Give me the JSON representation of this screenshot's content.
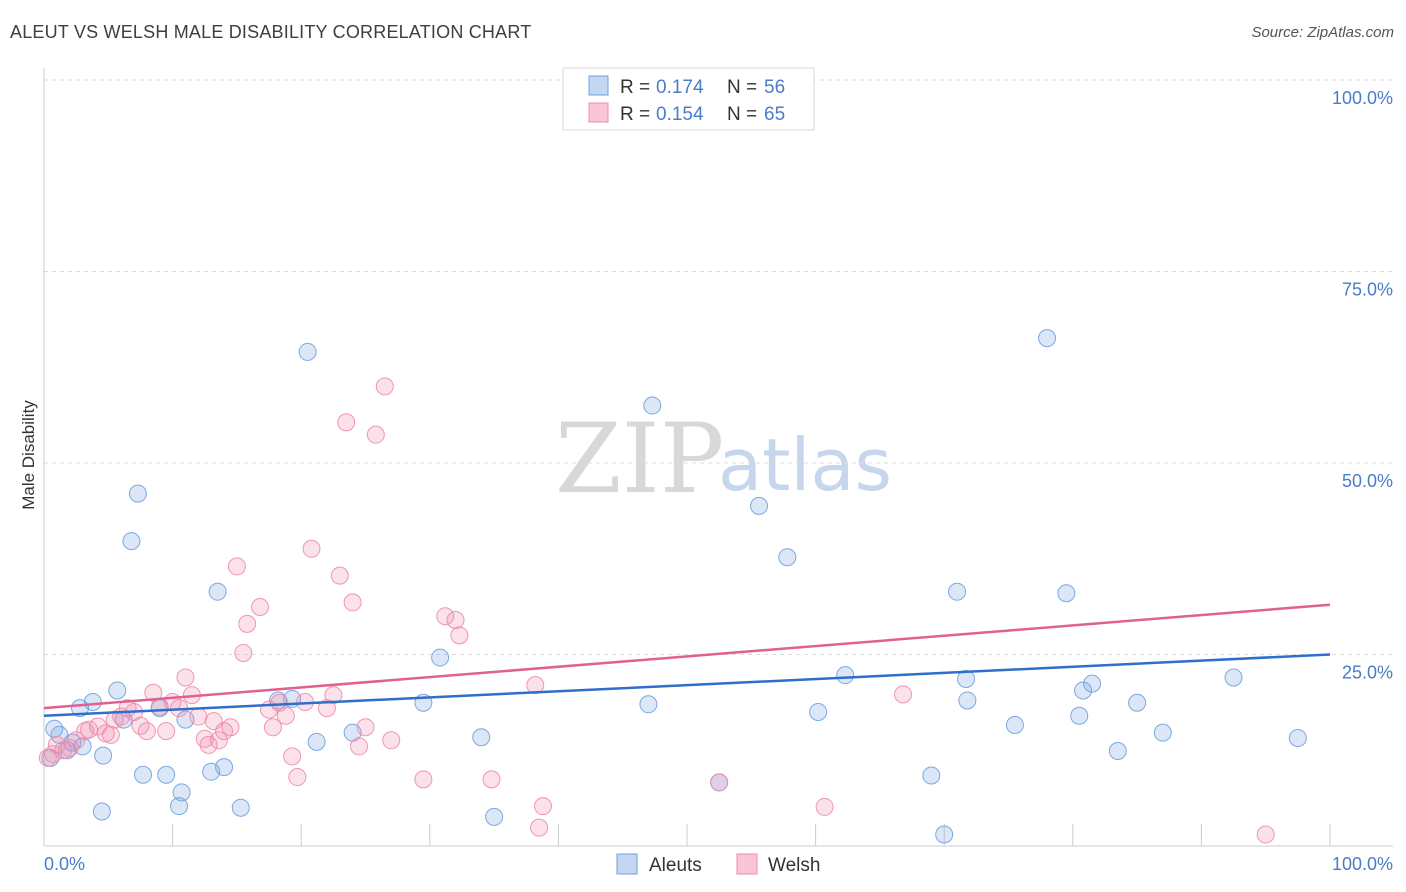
{
  "title": "ALEUT VS WELSH MALE DISABILITY CORRELATION CHART",
  "source": "Source: ZipAtlas.com",
  "watermark": {
    "zip": "ZIP",
    "atlas": "atlas"
  },
  "chart_data": {
    "type": "scatter",
    "title": "ALEUT VS WELSH MALE DISABILITY CORRELATION CHART",
    "ylabel": "Male Disability",
    "xlabel": "",
    "xlim": [
      0,
      100
    ],
    "ylim": [
      0,
      100
    ],
    "x_tick_labels": {
      "left": "0.0%",
      "right": "100.0%"
    },
    "y_ticks": [
      {
        "value": 100,
        "label": "100.0%"
      },
      {
        "value": 75,
        "label": "75.0%"
      },
      {
        "value": 50,
        "label": "50.0%"
      },
      {
        "value": 25,
        "label": "25.0%"
      }
    ],
    "grid": true,
    "legend_position": "top-center",
    "series": [
      {
        "name": "Aleuts",
        "color": "#6fa0e0",
        "line_color": "#2f6fcc",
        "r_label": "R =",
        "r_value": "0.174",
        "n_label": "N =",
        "n_value": "56",
        "trend": {
          "x": [
            0,
            100
          ],
          "y": [
            17.0,
            25.0
          ]
        },
        "points": [
          [
            0.5,
            11.5
          ],
          [
            0.8,
            15.3
          ],
          [
            1.2,
            14.5
          ],
          [
            1.8,
            12.5
          ],
          [
            2.2,
            13.5
          ],
          [
            3.0,
            13.0
          ],
          [
            2.8,
            18.0
          ],
          [
            3.8,
            18.8
          ],
          [
            4.6,
            11.8
          ],
          [
            4.5,
            4.5
          ],
          [
            5.7,
            20.3
          ],
          [
            6.2,
            16.5
          ],
          [
            6.8,
            39.8
          ],
          [
            7.3,
            46.0
          ],
          [
            7.7,
            9.3
          ],
          [
            9.0,
            18.0
          ],
          [
            9.5,
            9.3
          ],
          [
            10.5,
            5.2
          ],
          [
            10.7,
            7.0
          ],
          [
            11.0,
            16.5
          ],
          [
            13.0,
            9.7
          ],
          [
            13.5,
            33.2
          ],
          [
            14.0,
            10.3
          ],
          [
            15.3,
            5.0
          ],
          [
            18.2,
            19.0
          ],
          [
            19.3,
            19.2
          ],
          [
            20.5,
            64.5
          ],
          [
            21.2,
            13.6
          ],
          [
            24.0,
            14.8
          ],
          [
            29.5,
            18.7
          ],
          [
            30.8,
            24.6
          ],
          [
            34.0,
            14.2
          ],
          [
            35.0,
            3.8
          ],
          [
            47.0,
            18.5
          ],
          [
            47.3,
            57.5
          ],
          [
            52.5,
            8.3
          ],
          [
            55.6,
            44.4
          ],
          [
            57.8,
            37.7
          ],
          [
            60.2,
            17.5
          ],
          [
            62.3,
            22.3
          ],
          [
            69.0,
            9.2
          ],
          [
            70.0,
            1.5
          ],
          [
            71.0,
            33.2
          ],
          [
            71.7,
            21.8
          ],
          [
            71.8,
            19.0
          ],
          [
            75.5,
            15.8
          ],
          [
            78.0,
            66.3
          ],
          [
            79.5,
            33.0
          ],
          [
            80.5,
            17.0
          ],
          [
            80.8,
            20.3
          ],
          [
            81.5,
            21.2
          ],
          [
            83.5,
            12.4
          ],
          [
            85.0,
            18.7
          ],
          [
            87.0,
            14.8
          ],
          [
            92.5,
            22.0
          ],
          [
            97.5,
            14.1
          ]
        ]
      },
      {
        "name": "Welsh",
        "color": "#f08bab",
        "line_color": "#e06090",
        "r_label": "R =",
        "r_value": "0.154",
        "n_label": "N =",
        "n_value": "65",
        "trend": {
          "x": [
            0,
            100
          ],
          "y": [
            18.0,
            31.5
          ]
        },
        "points": [
          [
            0.3,
            11.5
          ],
          [
            0.7,
            12.0
          ],
          [
            1.0,
            13.2
          ],
          [
            1.5,
            12.5
          ],
          [
            2.0,
            12.8
          ],
          [
            2.5,
            13.8
          ],
          [
            3.2,
            15.0
          ],
          [
            3.5,
            15.2
          ],
          [
            4.2,
            15.6
          ],
          [
            4.8,
            14.7
          ],
          [
            5.2,
            14.5
          ],
          [
            5.5,
            16.5
          ],
          [
            6.0,
            16.9
          ],
          [
            6.5,
            18.0
          ],
          [
            7.0,
            17.5
          ],
          [
            7.5,
            15.7
          ],
          [
            8.0,
            15.0
          ],
          [
            8.5,
            20.0
          ],
          [
            9.0,
            18.2
          ],
          [
            9.5,
            15.0
          ],
          [
            10.0,
            18.8
          ],
          [
            10.5,
            18.0
          ],
          [
            11.0,
            22.0
          ],
          [
            11.5,
            19.7
          ],
          [
            12.0,
            16.9
          ],
          [
            12.5,
            14.0
          ],
          [
            12.8,
            13.2
          ],
          [
            13.2,
            16.3
          ],
          [
            13.6,
            13.8
          ],
          [
            14.0,
            15.0
          ],
          [
            14.5,
            15.5
          ],
          [
            15.0,
            36.5
          ],
          [
            15.5,
            25.2
          ],
          [
            15.8,
            29.0
          ],
          [
            16.8,
            31.2
          ],
          [
            17.5,
            17.8
          ],
          [
            17.8,
            15.5
          ],
          [
            18.3,
            18.7
          ],
          [
            18.8,
            17.0
          ],
          [
            19.3,
            11.7
          ],
          [
            19.7,
            9.0
          ],
          [
            20.3,
            18.8
          ],
          [
            20.8,
            38.8
          ],
          [
            22.0,
            18.0
          ],
          [
            22.5,
            19.7
          ],
          [
            23.0,
            35.3
          ],
          [
            23.5,
            55.3
          ],
          [
            24.0,
            31.8
          ],
          [
            24.5,
            13.0
          ],
          [
            25.0,
            15.5
          ],
          [
            25.8,
            53.7
          ],
          [
            26.5,
            60.0
          ],
          [
            27.0,
            13.8
          ],
          [
            29.5,
            8.7
          ],
          [
            31.2,
            30.0
          ],
          [
            32.0,
            29.5
          ],
          [
            32.3,
            27.5
          ],
          [
            34.8,
            8.7
          ],
          [
            38.2,
            21.0
          ],
          [
            38.5,
            2.4
          ],
          [
            38.8,
            5.2
          ],
          [
            52.5,
            8.3
          ],
          [
            60.7,
            5.1
          ],
          [
            66.8,
            19.8
          ],
          [
            95.0,
            1.5
          ]
        ]
      }
    ]
  }
}
